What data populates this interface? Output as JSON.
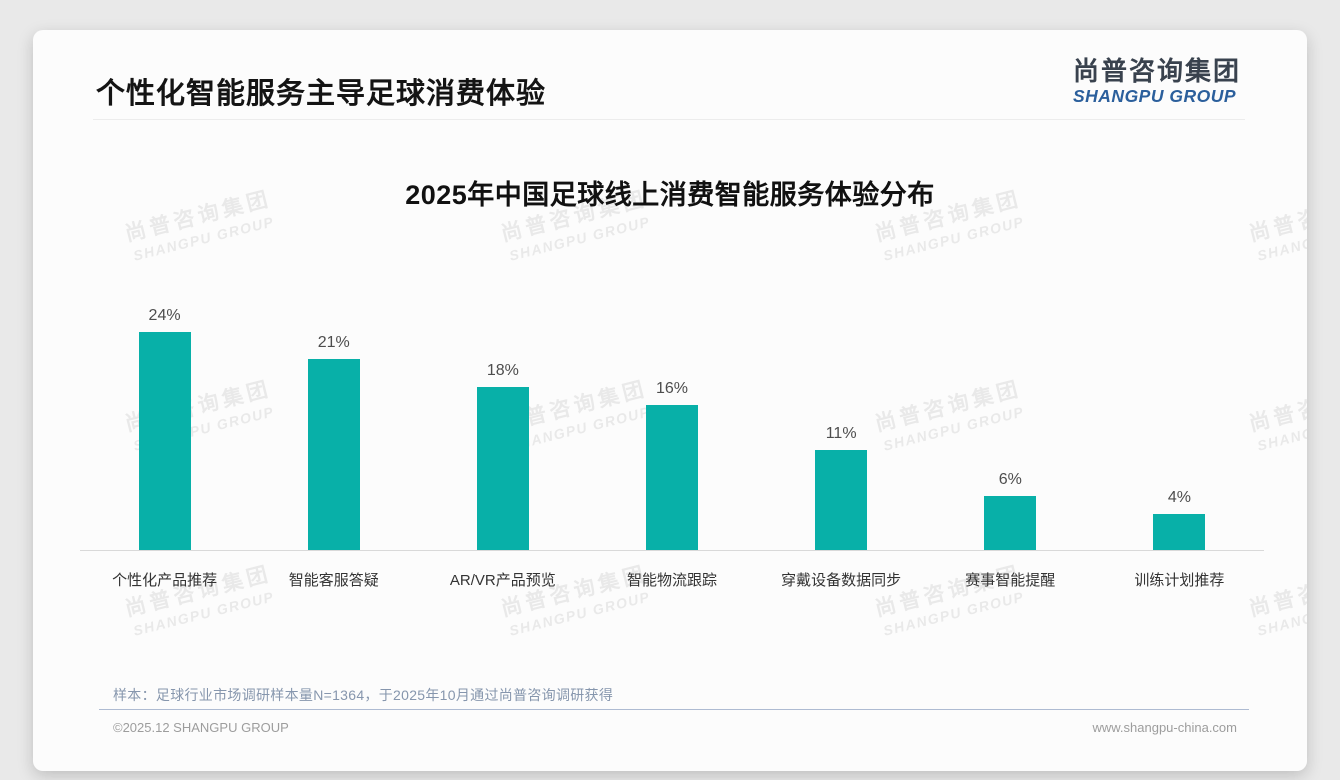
{
  "page": {
    "header": {
      "title": "个性化智能服务主导足球消费体验",
      "logo": {
        "name_zh": "尚普咨询集团",
        "name_en": "SHANGPU GROUP"
      }
    },
    "watermark": {
      "line1": "尚普咨询集团",
      "line2": "SHANGPU GROUP"
    },
    "source_note": "样本：足球行业市场调研样本量N=1364，于2025年10月通过尚普咨询调研获得",
    "footer": {
      "copyright": "©2025.12 SHANGPU GROUP",
      "website": "www.shangpu-china.com"
    },
    "colors": {
      "logo_zh": "#39424E",
      "logo_en": "#2B5F9C",
      "footer_divider": "#AEBBD2",
      "source_note_text": "#8696AD"
    }
  },
  "chart_data": {
    "type": "bar",
    "title": "2025年中国足球线上消费智能服务体验分布",
    "categories": [
      "个性化产品推荐",
      "智能客服答疑",
      "AR/VR产品预览",
      "智能物流跟踪",
      "穿戴设备数据同步",
      "赛事智能提醒",
      "训练计划推荐"
    ],
    "values": [
      24,
      21,
      18,
      16,
      11,
      6,
      4
    ],
    "value_labels": [
      "24%",
      "21%",
      "18%",
      "16%",
      "11%",
      "6%",
      "4%"
    ],
    "unit": "%",
    "bar_color": "#08B0A8",
    "value_label_color": "#4D4D4D",
    "category_label_color": "#333333",
    "axis_line_color": "#D9D9D9",
    "ylim": [
      0,
      26
    ],
    "grid": false,
    "legend": false,
    "value_labels_position": "above-bars"
  }
}
